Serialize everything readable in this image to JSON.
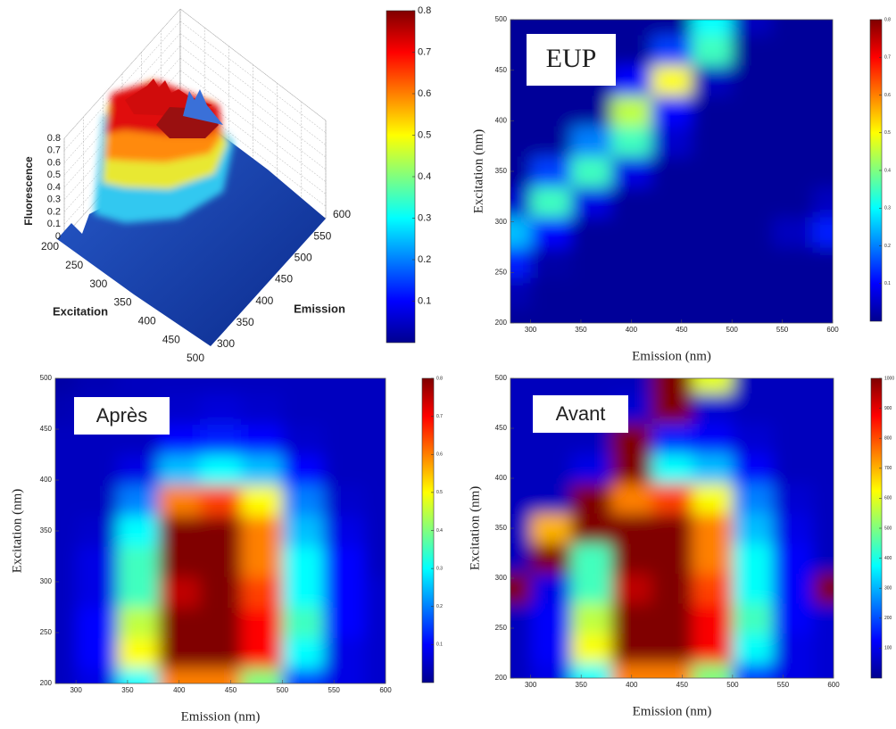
{
  "chart_data": [
    {
      "type": "surface",
      "zlabel": "Fluorescence",
      "xlabel": "Excitation",
      "ylabel": "Emission",
      "xlim": [
        200,
        500
      ],
      "xticks": [
        200,
        250,
        300,
        350,
        400,
        450,
        500
      ],
      "ylim": [
        300,
        600
      ],
      "yticks": [
        300,
        350,
        400,
        450,
        500,
        550,
        600
      ],
      "zlim": [
        0,
        0.8
      ],
      "zticks": [
        0,
        0.1,
        0.2,
        0.3,
        0.4,
        0.5,
        0.6,
        0.7,
        0.8
      ],
      "cticks": [
        0.1,
        0.2,
        0.3,
        0.4,
        0.5,
        0.6,
        0.7,
        0.8
      ],
      "colormap": "jet"
    },
    {
      "type": "heatmap",
      "label": "EUP",
      "xlabel": "Emission (nm)",
      "ylabel": "Excitation (nm)",
      "x": [
        280,
        320,
        360,
        400,
        440,
        480,
        520,
        560,
        600
      ],
      "y": [
        200,
        230,
        260,
        290,
        320,
        350,
        380,
        410,
        440,
        470,
        500
      ],
      "z": [
        [
          0.02,
          0.02,
          0.02,
          0.02,
          0.02,
          0.02,
          0.02,
          0.02,
          0.02
        ],
        [
          0.04,
          0.02,
          0.02,
          0.02,
          0.02,
          0.02,
          0.02,
          0.02,
          0.02
        ],
        [
          0.12,
          0.03,
          0.02,
          0.02,
          0.02,
          0.02,
          0.02,
          0.02,
          0.02
        ],
        [
          0.25,
          0.1,
          0.02,
          0.02,
          0.02,
          0.02,
          0.02,
          0.05,
          0.12
        ],
        [
          0.06,
          0.35,
          0.08,
          0.02,
          0.02,
          0.02,
          0.02,
          0.02,
          0.05
        ],
        [
          0.02,
          0.15,
          0.35,
          0.08,
          0.02,
          0.02,
          0.02,
          0.02,
          0.02
        ],
        [
          0.02,
          0.02,
          0.2,
          0.35,
          0.06,
          0.02,
          0.02,
          0.02,
          0.02
        ],
        [
          0.02,
          0.02,
          0.02,
          0.45,
          0.1,
          0.02,
          0.02,
          0.02,
          0.02
        ],
        [
          0.02,
          0.02,
          0.02,
          0.1,
          0.5,
          0.05,
          0.02,
          0.02,
          0.02
        ],
        [
          0.02,
          0.02,
          0.02,
          0.02,
          0.15,
          0.35,
          0.02,
          0.02,
          0.02
        ],
        [
          0.02,
          0.02,
          0.02,
          0.02,
          0.02,
          0.3,
          0.05,
          0.02,
          0.02
        ]
      ],
      "xlim": [
        280,
        600
      ],
      "xticks": [
        300,
        350,
        400,
        450,
        500,
        550,
        600
      ],
      "ylim": [
        200,
        500
      ],
      "yticks": [
        200,
        250,
        300,
        350,
        400,
        450,
        500
      ],
      "zlim": [
        0,
        0.8
      ],
      "cticks": [
        0.1,
        0.2,
        0.3,
        0.4,
        0.5,
        0.6,
        0.7,
        0.8
      ],
      "colormap": "jet"
    },
    {
      "type": "heatmap",
      "label": "Après",
      "xlabel": "Emission (nm)",
      "ylabel": "Excitation (nm)",
      "x": [
        280,
        320,
        360,
        400,
        440,
        480,
        520,
        560,
        600
      ],
      "y": [
        200,
        230,
        260,
        290,
        320,
        350,
        380,
        410,
        440,
        470,
        500
      ],
      "z": [
        [
          0.05,
          0.08,
          0.3,
          0.6,
          0.6,
          0.4,
          0.15,
          0.08,
          0.06
        ],
        [
          0.05,
          0.1,
          0.5,
          0.8,
          0.8,
          0.7,
          0.3,
          0.08,
          0.06
        ],
        [
          0.05,
          0.1,
          0.45,
          0.8,
          0.8,
          0.7,
          0.35,
          0.1,
          0.06
        ],
        [
          0.05,
          0.08,
          0.35,
          0.75,
          0.8,
          0.65,
          0.3,
          0.1,
          0.06
        ],
        [
          0.05,
          0.08,
          0.35,
          0.8,
          0.8,
          0.6,
          0.3,
          0.1,
          0.05
        ],
        [
          0.05,
          0.06,
          0.3,
          0.8,
          0.8,
          0.6,
          0.25,
          0.08,
          0.05
        ],
        [
          0.05,
          0.05,
          0.2,
          0.6,
          0.65,
          0.5,
          0.2,
          0.06,
          0.05
        ],
        [
          0.05,
          0.05,
          0.08,
          0.25,
          0.3,
          0.25,
          0.1,
          0.05,
          0.05
        ],
        [
          0.05,
          0.05,
          0.05,
          0.1,
          0.12,
          0.1,
          0.06,
          0.05,
          0.05
        ],
        [
          0.04,
          0.05,
          0.05,
          0.06,
          0.07,
          0.06,
          0.05,
          0.05,
          0.05
        ],
        [
          0.03,
          0.04,
          0.05,
          0.05,
          0.05,
          0.05,
          0.05,
          0.05,
          0.05
        ]
      ],
      "xlim": [
        280,
        600
      ],
      "xticks": [
        300,
        350,
        400,
        450,
        500,
        550,
        600
      ],
      "ylim": [
        200,
        500
      ],
      "yticks": [
        200,
        250,
        300,
        350,
        400,
        450,
        500
      ],
      "zlim": [
        0,
        0.8
      ],
      "cticks": [
        0.1,
        0.2,
        0.3,
        0.4,
        0.5,
        0.6,
        0.7,
        0.8
      ],
      "colormap": "jet"
    },
    {
      "type": "heatmap",
      "label": "Avant",
      "xlabel": "Emission (nm)",
      "ylabel": "Excitation (nm)",
      "x": [
        280,
        320,
        360,
        400,
        440,
        480,
        520,
        560,
        600
      ],
      "y": [
        200,
        230,
        260,
        290,
        320,
        350,
        380,
        410,
        440,
        470,
        500
      ],
      "z": [
        [
          60,
          100,
          380,
          750,
          750,
          500,
          190,
          100,
          80
        ],
        [
          60,
          120,
          620,
          1000,
          1000,
          880,
          380,
          100,
          80
        ],
        [
          60,
          120,
          560,
          1000,
          1000,
          880,
          440,
          120,
          80
        ],
        [
          1000,
          100,
          440,
          940,
          1000,
          810,
          380,
          120,
          1000
        ],
        [
          60,
          1000,
          440,
          1000,
          1000,
          750,
          380,
          120,
          60
        ],
        [
          60,
          700,
          1000,
          1000,
          1000,
          750,
          310,
          100,
          60
        ],
        [
          60,
          60,
          1000,
          750,
          810,
          620,
          250,
          80,
          60
        ],
        [
          60,
          60,
          100,
          1000,
          380,
          310,
          120,
          60,
          60
        ],
        [
          60,
          60,
          60,
          1000,
          150,
          120,
          80,
          60,
          60
        ],
        [
          60,
          60,
          60,
          80,
          1000,
          80,
          60,
          60,
          60
        ],
        [
          60,
          60,
          60,
          60,
          1000,
          600,
          60,
          60,
          60
        ]
      ],
      "xlim": [
        280,
        600
      ],
      "xticks": [
        300,
        350,
        400,
        450,
        500,
        550,
        600
      ],
      "ylim": [
        200,
        500
      ],
      "yticks": [
        200,
        250,
        300,
        350,
        400,
        450,
        500
      ],
      "zlim": [
        0,
        1000
      ],
      "cticks": [
        100,
        200,
        300,
        400,
        500,
        600,
        700,
        800,
        900,
        1000
      ],
      "colormap": "jet"
    }
  ]
}
